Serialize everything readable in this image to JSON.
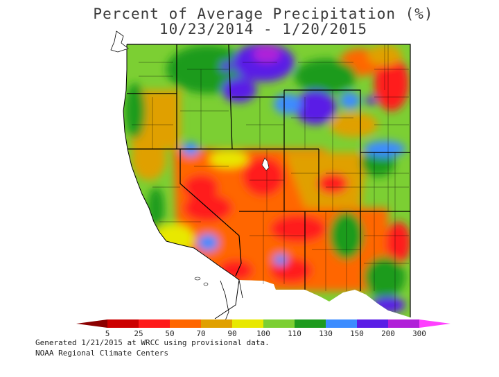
{
  "title": {
    "line1": "Percent of Average Precipitation (%)",
    "line2": "10/23/2014 - 1/20/2015"
  },
  "legend": {
    "ticks": [
      "5",
      "25",
      "50",
      "70",
      "90",
      "100",
      "110",
      "130",
      "150",
      "200",
      "300"
    ],
    "colors": [
      "#8b0000",
      "#cc0000",
      "#ff1a1a",
      "#ff6600",
      "#e0a000",
      "#e8e800",
      "#7ccf33",
      "#1e9b1e",
      "#3c8cff",
      "#5a1ee6",
      "#b020d8",
      "#ff40ff"
    ]
  },
  "map": {
    "background_color": "#ffffff",
    "region": "Western United States"
  },
  "footer": {
    "line1": "Generated 1/21/2015 at WRCC using provisional data.",
    "line2": "NOAA Regional Climate Centers"
  }
}
